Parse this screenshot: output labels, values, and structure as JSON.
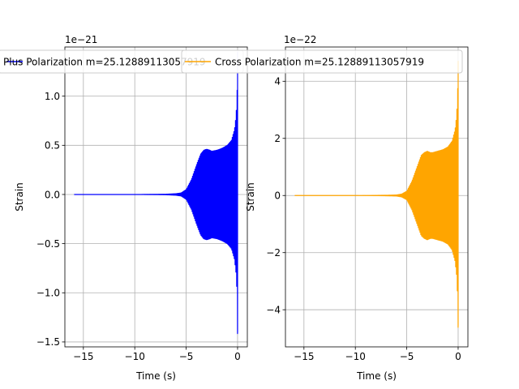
{
  "chart_data": [
    {
      "type": "line",
      "title": "",
      "xlabel": "Time (s)",
      "ylabel": "Strain",
      "offset_text": "1e−21",
      "xlim": [
        -16.8,
        0.95
      ],
      "ylim": [
        -1.55,
        1.5
      ],
      "xticks": [
        -15,
        -10,
        -5,
        0
      ],
      "xtick_labels": [
        "−15",
        "−10",
        "−5",
        "0"
      ],
      "yticks": [
        -1.5,
        -1.0,
        -0.5,
        0.0,
        0.5,
        1.0
      ],
      "ytick_labels": [
        "−1.5",
        "−1.0",
        "−0.5",
        "0.0",
        "0.5",
        "1.0"
      ],
      "grid": true,
      "legend_position": "upper right",
      "series": [
        {
          "name": "Plus Polarization m=25.12889113057919",
          "color": "#0000ff",
          "envelope": {
            "x": [
              -15.9,
              -10,
              -7,
              -6,
              -5.5,
              -5,
              -4.5,
              -4,
              -3.6,
              -3.3,
              -3,
              -2.7,
              -2.5,
              -2,
              -1.5,
              -1,
              -0.6,
              -0.3,
              -0.15,
              -0.05,
              0
            ],
            "y": [
              0.0,
              0.0,
              0.003,
              0.008,
              0.015,
              0.05,
              0.15,
              0.3,
              0.41,
              0.45,
              0.46,
              0.45,
              0.44,
              0.45,
              0.47,
              0.5,
              0.55,
              0.66,
              0.8,
              1.0,
              1.45
            ]
          }
        }
      ]
    },
    {
      "type": "line",
      "title": "",
      "xlabel": "Time (s)",
      "ylabel": "Strain",
      "offset_text": "1e−22",
      "xlim": [
        -16.8,
        0.95
      ],
      "ylim": [
        -5.3,
        5.2
      ],
      "xticks": [
        -15,
        -10,
        -5,
        0
      ],
      "xtick_labels": [
        "−15",
        "−10",
        "−5",
        "0"
      ],
      "yticks": [
        -4,
        -2,
        0,
        2,
        4
      ],
      "ytick_labels": [
        "−4",
        "−2",
        "0",
        "2",
        "4"
      ],
      "grid": true,
      "legend_position": "upper right",
      "series": [
        {
          "name": "Cross Polarization m=25.12889113057919",
          "color": "#ffa500",
          "envelope": {
            "x": [
              -15.9,
              -10,
              -7,
              -6,
              -5.5,
              -5,
              -4.5,
              -4,
              -3.6,
              -3.3,
              -3,
              -2.7,
              -2.5,
              -2,
              -1.5,
              -1,
              -0.6,
              -0.3,
              -0.15,
              -0.05,
              0
            ],
            "y": [
              0.0,
              0.0,
              0.01,
              0.02,
              0.05,
              0.15,
              0.5,
              1.0,
              1.4,
              1.5,
              1.55,
              1.5,
              1.5,
              1.55,
              1.6,
              1.7,
              1.9,
              2.3,
              2.8,
              3.6,
              4.7
            ]
          }
        }
      ]
    }
  ]
}
